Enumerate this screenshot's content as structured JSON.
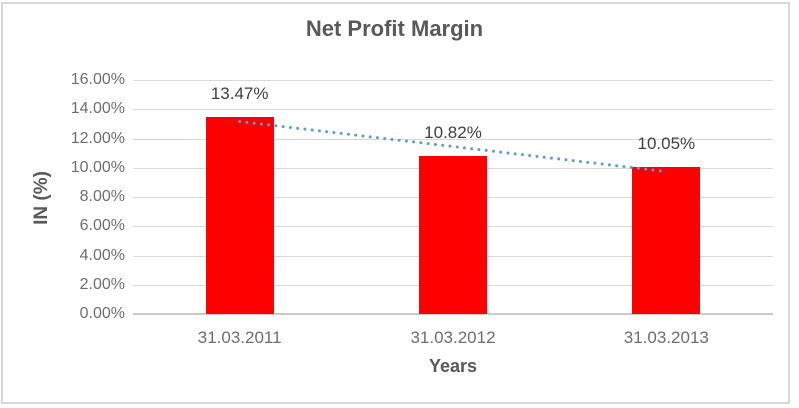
{
  "chart_data": {
    "type": "bar",
    "title": "Net Profit Margin",
    "categories": [
      "31.03.2011",
      "31.03.2012",
      "31.03.2013"
    ],
    "values": [
      13.47,
      10.82,
      10.05
    ],
    "data_labels": [
      "13.47%",
      "10.82%",
      "10.05%"
    ],
    "xlabel": "Years",
    "ylabel": "IN (%)",
    "ylim": [
      0,
      16
    ],
    "ytick_step": 2,
    "ytick_labels": [
      "0.00%",
      "2.00%",
      "4.00%",
      "6.00%",
      "8.00%",
      "10.00%",
      "12.00%",
      "14.00%",
      "16.00%"
    ],
    "grid": true,
    "legend": false,
    "bar_color": "#FF0000",
    "trendline": {
      "type": "linear",
      "style": "dotted",
      "color": "#5B9BD5",
      "start_value": 13.16,
      "end_value": 9.74
    },
    "colors": {
      "background": "#FFFFFF",
      "frame_border": "#D8D6D6",
      "title": "#595959",
      "axis_title": "#595959",
      "tick_label": "#6E6E6E",
      "data_label": "#404040",
      "gridline": "#D9D9D9",
      "axis_line": "#C9C9C9"
    }
  }
}
